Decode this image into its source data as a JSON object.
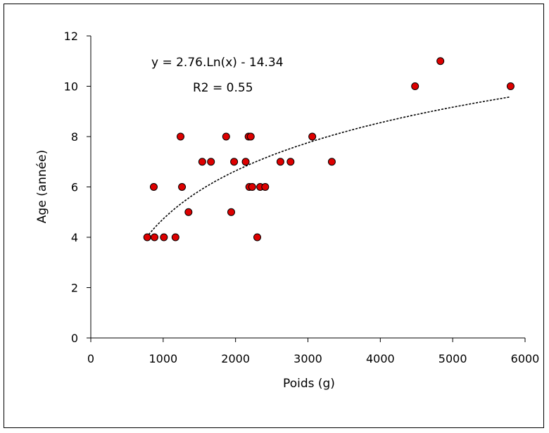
{
  "chart_data": {
    "type": "scatter",
    "title": "",
    "xlabel": "Poids (g)",
    "ylabel": "Age (année)",
    "xlim": [
      0,
      6000
    ],
    "ylim": [
      0,
      12
    ],
    "xticks": [
      0,
      1000,
      2000,
      3000,
      4000,
      5000,
      6000
    ],
    "yticks": [
      0,
      2,
      4,
      6,
      8,
      10,
      12
    ],
    "grid": false,
    "legend": "none",
    "series": [
      {
        "marker_color": "#dd0000",
        "points": [
          {
            "x": 780,
            "y": 4
          },
          {
            "x": 880,
            "y": 4
          },
          {
            "x": 1010,
            "y": 4
          },
          {
            "x": 1170,
            "y": 4
          },
          {
            "x": 870,
            "y": 6
          },
          {
            "x": 1240,
            "y": 8
          },
          {
            "x": 1260,
            "y": 6
          },
          {
            "x": 1350,
            "y": 5
          },
          {
            "x": 1540,
            "y": 7
          },
          {
            "x": 1660,
            "y": 7
          },
          {
            "x": 1870,
            "y": 8
          },
          {
            "x": 1940,
            "y": 5
          },
          {
            "x": 1980,
            "y": 7
          },
          {
            "x": 2140,
            "y": 7
          },
          {
            "x": 2180,
            "y": 8
          },
          {
            "x": 2210,
            "y": 8
          },
          {
            "x": 2190,
            "y": 6
          },
          {
            "x": 2230,
            "y": 6
          },
          {
            "x": 2300,
            "y": 4
          },
          {
            "x": 2340,
            "y": 6
          },
          {
            "x": 2410,
            "y": 6
          },
          {
            "x": 2620,
            "y": 7
          },
          {
            "x": 2760,
            "y": 7
          },
          {
            "x": 3060,
            "y": 8
          },
          {
            "x": 3330,
            "y": 7
          },
          {
            "x": 4480,
            "y": 10
          },
          {
            "x": 4830,
            "y": 11
          },
          {
            "x": 5800,
            "y": 10
          }
        ]
      }
    ],
    "trendline": {
      "style": "dotted",
      "color": "#000000",
      "equation_label": "y = 2.76.Ln(x) - 14.34",
      "r2_label": "R2 = 0.55",
      "coef_a": 2.76,
      "coef_b": -14.34,
      "x_from": 800,
      "x_to": 5800
    }
  }
}
